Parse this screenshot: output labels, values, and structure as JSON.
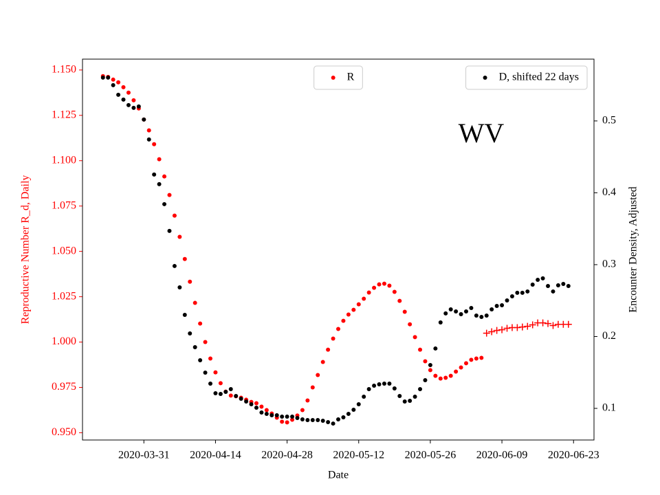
{
  "chart_data": {
    "type": "scatter",
    "xlabel": "Date",
    "ylabel": "Reproductive Number R_d, Daily",
    "y2label": "Encounter Density, Adjusted",
    "annotation": "WV",
    "y_axis_color": "#ff0000",
    "x": [
      "2020-03-23",
      "2020-03-24",
      "2020-03-25",
      "2020-03-26",
      "2020-03-27",
      "2020-03-28",
      "2020-03-29",
      "2020-03-30",
      "2020-03-31",
      "2020-04-01",
      "2020-04-02",
      "2020-04-03",
      "2020-04-04",
      "2020-04-05",
      "2020-04-06",
      "2020-04-07",
      "2020-04-08",
      "2020-04-09",
      "2020-04-10",
      "2020-04-11",
      "2020-04-12",
      "2020-04-13",
      "2020-04-14",
      "2020-04-15",
      "2020-04-16",
      "2020-04-17",
      "2020-04-18",
      "2020-04-19",
      "2020-04-20",
      "2020-04-21",
      "2020-04-22",
      "2020-04-23",
      "2020-04-24",
      "2020-04-25",
      "2020-04-26",
      "2020-04-27",
      "2020-04-28",
      "2020-04-29",
      "2020-04-30",
      "2020-05-01",
      "2020-05-02",
      "2020-05-03",
      "2020-05-04",
      "2020-05-05",
      "2020-05-06",
      "2020-05-07",
      "2020-05-08",
      "2020-05-09",
      "2020-05-10",
      "2020-05-11",
      "2020-05-12",
      "2020-05-13",
      "2020-05-14",
      "2020-05-15",
      "2020-05-16",
      "2020-05-17",
      "2020-05-18",
      "2020-05-19",
      "2020-05-20",
      "2020-05-21",
      "2020-05-22",
      "2020-05-23",
      "2020-05-24",
      "2020-05-25",
      "2020-05-26",
      "2020-05-27",
      "2020-05-28",
      "2020-05-29",
      "2020-05-30",
      "2020-05-31",
      "2020-06-01",
      "2020-06-02",
      "2020-06-03",
      "2020-06-04",
      "2020-06-05",
      "2020-06-06",
      "2020-06-07",
      "2020-06-08",
      "2020-06-09",
      "2020-06-10",
      "2020-06-11",
      "2020-06-12",
      "2020-06-13",
      "2020-06-14",
      "2020-06-15",
      "2020-06-16",
      "2020-06-17",
      "2020-06-18",
      "2020-06-19",
      "2020-06-20",
      "2020-06-21",
      "2020-06-22"
    ],
    "xlim": [
      "2020-03-19",
      "2020-06-27"
    ],
    "xticks": [
      "2020-03-31",
      "2020-04-14",
      "2020-04-28",
      "2020-05-12",
      "2020-05-26",
      "2020-06-09",
      "2020-06-23"
    ],
    "ylim": [
      0.946,
      1.156
    ],
    "yticks": [
      {
        "value": 0.95,
        "label": "0.950"
      },
      {
        "value": 0.975,
        "label": "0.975"
      },
      {
        "value": 1.0,
        "label": "1.000"
      },
      {
        "value": 1.025,
        "label": "1.025"
      },
      {
        "value": 1.05,
        "label": "1.050"
      },
      {
        "value": 1.075,
        "label": "1.075"
      },
      {
        "value": 1.1,
        "label": "1.100"
      },
      {
        "value": 1.125,
        "label": "1.125"
      },
      {
        "value": 1.15,
        "label": "1.150"
      }
    ],
    "y2lim": [
      0.056,
      0.586
    ],
    "y2ticks": [
      0.1,
      0.2,
      0.3,
      0.4,
      0.5
    ],
    "series": [
      {
        "name": "R",
        "color": "#ff0000",
        "marker": "dot",
        "legend_loc": "upper center",
        "values": [
          1.1466,
          1.1462,
          1.1447,
          1.1432,
          1.1405,
          1.1375,
          1.1333,
          1.1288,
          1.1227,
          1.1167,
          1.1091,
          1.1008,
          1.0913,
          1.0811,
          1.0697,
          1.058,
          1.0458,
          1.0333,
          1.0216,
          1.0102,
          1.0,
          0.9909,
          0.9833,
          0.9773,
          0.9727,
          0.9705,
          0.9701,
          0.9693,
          0.9682,
          0.967,
          0.9663,
          0.9644,
          0.9625,
          0.9606,
          0.9583,
          0.9561,
          0.9557,
          0.9572,
          0.9595,
          0.9625,
          0.9678,
          0.975,
          0.9818,
          0.989,
          0.9958,
          1.0019,
          1.0072,
          1.0117,
          1.0152,
          1.0178,
          1.0208,
          1.0239,
          1.0273,
          1.0299,
          1.0318,
          1.0322,
          1.0311,
          1.0277,
          1.0227,
          1.0167,
          1.0098,
          1.0027,
          0.9958,
          0.9894,
          0.9845,
          0.9814,
          0.9799,
          0.9803,
          0.9814,
          0.9837,
          0.986,
          0.9883,
          0.9902,
          0.9909,
          0.9913,
          null,
          null,
          null,
          null,
          null,
          null,
          null,
          null,
          null,
          null,
          null,
          null,
          null,
          null,
          null,
          null,
          null
        ]
      },
      {
        "color": "#ff0000",
        "marker": "plus",
        "values": [
          null,
          null,
          null,
          null,
          null,
          null,
          null,
          null,
          null,
          null,
          null,
          null,
          null,
          null,
          null,
          null,
          null,
          null,
          null,
          null,
          null,
          null,
          null,
          null,
          null,
          null,
          null,
          null,
          null,
          null,
          null,
          null,
          null,
          null,
          null,
          null,
          null,
          null,
          null,
          null,
          null,
          null,
          null,
          null,
          null,
          null,
          null,
          null,
          null,
          null,
          null,
          null,
          null,
          null,
          null,
          null,
          null,
          null,
          null,
          null,
          null,
          null,
          null,
          null,
          null,
          null,
          null,
          null,
          null,
          null,
          null,
          null,
          null,
          null,
          null,
          1.0049,
          1.0057,
          1.0064,
          1.0068,
          1.0076,
          1.008,
          1.008,
          1.0083,
          1.0087,
          1.0095,
          1.0106,
          1.0106,
          1.0102,
          1.0091,
          1.0098,
          1.0098,
          1.0098
        ]
      },
      {
        "name": "D, shifted 22 days",
        "color": "#000000",
        "marker": "dot",
        "axis": "y2",
        "legend_loc": "upper right",
        "values": [
          0.5603,
          0.5603,
          0.5498,
          0.5364,
          0.5297,
          0.522,
          0.5182,
          0.5201,
          0.5019,
          0.4742,
          0.4254,
          0.412,
          0.3842,
          0.3469,
          0.2981,
          0.2684,
          0.2301,
          0.2043,
          0.1852,
          0.167,
          0.1498,
          0.1344,
          0.1211,
          0.1201,
          0.123,
          0.1268,
          0.1172,
          0.1134,
          0.1096,
          0.1057,
          0.101,
          0.0943,
          0.0923,
          0.0904,
          0.0904,
          0.0885,
          0.0885,
          0.0885,
          0.0866,
          0.0847,
          0.0837,
          0.0837,
          0.0837,
          0.0828,
          0.0809,
          0.0789,
          0.0847,
          0.0876,
          0.0923,
          0.0981,
          0.1057,
          0.1163,
          0.1268,
          0.1316,
          0.1335,
          0.1344,
          0.1344,
          0.1278,
          0.1172,
          0.1096,
          0.1105,
          0.1163,
          0.1268,
          0.1392,
          0.1603,
          0.1833,
          0.2196,
          0.2321,
          0.2378,
          0.2349,
          0.2311,
          0.2349,
          0.2397,
          0.2292,
          0.2273,
          0.2292,
          0.2378,
          0.2426,
          0.2435,
          0.2502,
          0.256,
          0.2608,
          0.2608,
          0.2627,
          0.2722,
          0.2789,
          0.2809,
          0.2703,
          0.2627,
          0.2713,
          0.2732,
          0.2703
        ]
      }
    ]
  }
}
